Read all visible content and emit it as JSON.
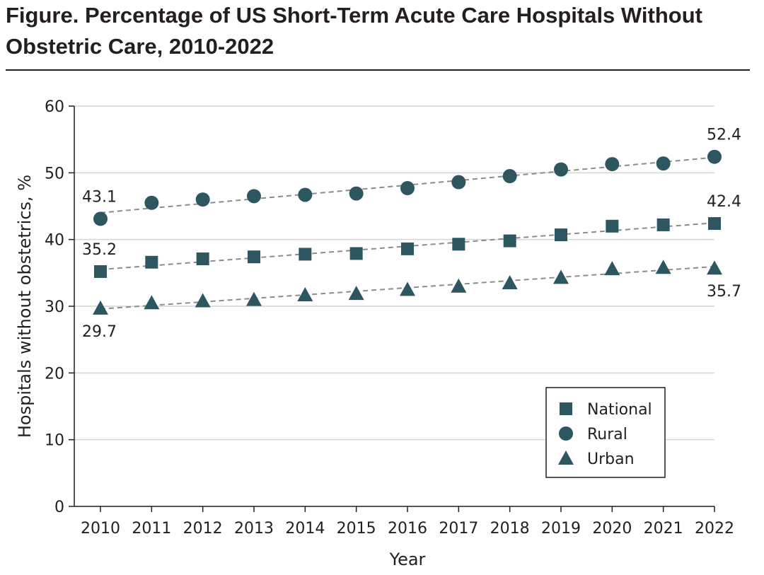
{
  "figure": {
    "title": "Figure. Percentage of US Short-Term Acute Care Hospitals Without Obstetric Care, 2010-2022"
  },
  "colors": {
    "marker": "#2e5661",
    "trendline": "#8c8c8c",
    "gridline": "#d4d4d4",
    "text": "#231f20"
  },
  "chart_data": {
    "type": "scatter",
    "title": "Percentage of US Short-Term Acute Care Hospitals Without Obstetric Care, 2010-2022",
    "xlabel": "Year",
    "ylabel": "Hospitals without obstetrics, %",
    "x": [
      2010,
      2011,
      2012,
      2013,
      2014,
      2015,
      2016,
      2017,
      2018,
      2019,
      2020,
      2021,
      2022
    ],
    "xlim": [
      2010,
      2022
    ],
    "ylim": [
      0,
      60
    ],
    "yticks": [
      0,
      10,
      20,
      30,
      40,
      50,
      60
    ],
    "grid": true,
    "trendlines": "dashed linear fit per series",
    "legend_position": "lower-right",
    "series": [
      {
        "name": "National",
        "marker": "square",
        "values": [
          35.2,
          36.6,
          37.1,
          37.4,
          37.8,
          37.9,
          38.6,
          39.3,
          39.8,
          40.7,
          42.0,
          42.2,
          42.4
        ],
        "labels": [
          {
            "year": 2010,
            "text": "35.2",
            "position": "above"
          },
          {
            "year": 2022,
            "text": "42.4",
            "position": "above"
          }
        ]
      },
      {
        "name": "Rural",
        "marker": "circle",
        "values": [
          43.1,
          45.5,
          46.0,
          46.5,
          46.7,
          46.9,
          47.7,
          48.6,
          49.5,
          50.5,
          51.3,
          51.4,
          52.4
        ],
        "labels": [
          {
            "year": 2010,
            "text": "43.1",
            "position": "above"
          },
          {
            "year": 2022,
            "text": "52.4",
            "position": "above"
          }
        ]
      },
      {
        "name": "Urban",
        "marker": "triangle",
        "values": [
          29.7,
          30.5,
          30.8,
          31.0,
          31.7,
          31.9,
          32.5,
          33.0,
          33.5,
          34.3,
          35.6,
          35.8,
          35.7
        ],
        "labels": [
          {
            "year": 2010,
            "text": "29.7",
            "position": "below"
          },
          {
            "year": 2022,
            "text": "35.7",
            "position": "below"
          }
        ]
      }
    ]
  }
}
